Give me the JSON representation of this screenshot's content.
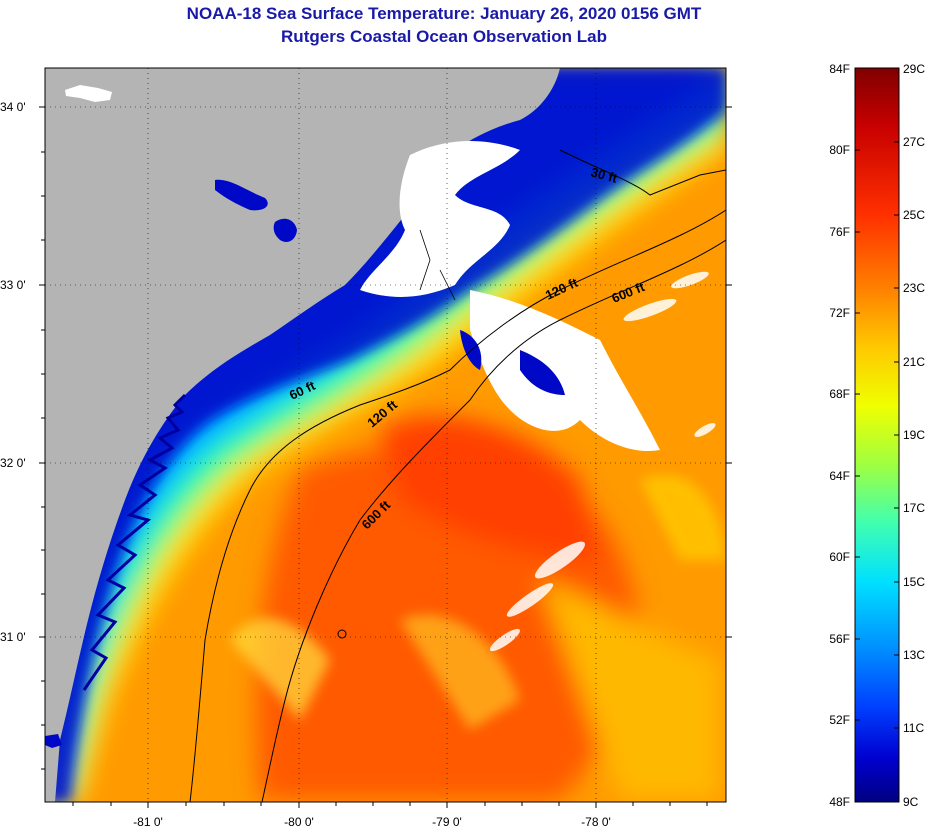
{
  "header": {
    "title": "NOAA-18 Sea Surface Temperature:  January 26, 2020 0156 GMT",
    "subtitle": "Rutgers Coastal Ocean Observation Lab"
  },
  "map": {
    "lat_labels": [
      "34 0'",
      "33 0'",
      "32 0'",
      "31 0'"
    ],
    "lon_labels": [
      "-81 0'",
      "-80 0'",
      "-79 0'",
      "-78 0'"
    ],
    "contour_labels": [
      "30 ft",
      "120 ft",
      "600 ft",
      "60 ft",
      "120 ft",
      "600 ft"
    ]
  },
  "colorbar": {
    "fahrenheit_labels": [
      "84F",
      "80F",
      "76F",
      "72F",
      "68F",
      "64F",
      "60F",
      "56F",
      "52F",
      "48F"
    ],
    "celsius_labels": [
      "29C",
      "27C",
      "25C",
      "23C",
      "21C",
      "19C",
      "17C",
      "15C",
      "13C",
      "11C",
      "9C"
    ],
    "gradient_colors": [
      "#800000",
      "#c80000",
      "#ff3000",
      "#ff8000",
      "#ffc800",
      "#f0ff00",
      "#a0ff40",
      "#40ffb0",
      "#00e0ff",
      "#0090ff",
      "#0040ff",
      "#0000d0",
      "#000080"
    ]
  },
  "colors": {
    "land": "#b4b4b4",
    "cloud": "#ffffff",
    "title": "#1a1aa8"
  }
}
